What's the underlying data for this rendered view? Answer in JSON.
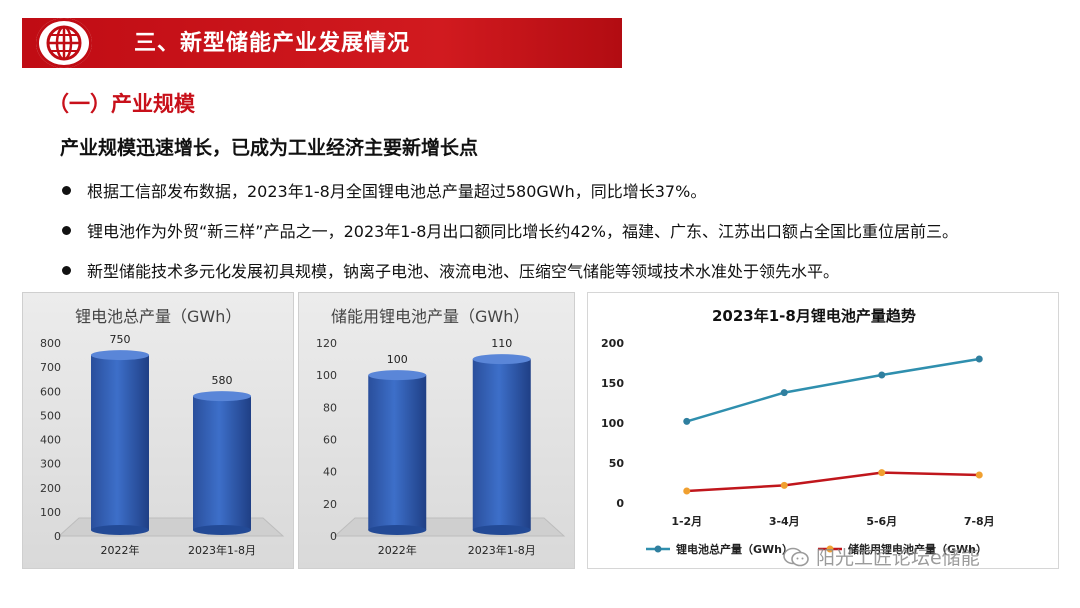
{
  "header": {
    "title": "三、新型储能产业发展情况",
    "brand_color": "#c00c14"
  },
  "section": {
    "title": "（一）产业规模"
  },
  "subtitle": "产业规模迅速增长，已成为工业经济主要新增长点",
  "bullets": [
    "根据工信部发布数据，2023年1-8月全国锂电池总产量超过580GWh，同比增长37%。",
    "锂电池作为外贸“新三样”产品之一，2023年1-8月出口额同比增长约42%，福建、广东、江苏出口额占全国比重位居前三。",
    "新型储能技术多元化发展初具规模，钠离子电池、液流电池、压缩空气储能等领域技术水准处于领先水平。"
  ],
  "watermark": "阳光工匠论坛e储能",
  "chart_data": [
    {
      "type": "bar",
      "title": "锂电池总产量（GWh）",
      "categories": [
        "2022年",
        "2023年1-8月"
      ],
      "values": [
        750,
        580
      ],
      "data_labels": [
        "750",
        "580"
      ],
      "ylim": [
        0,
        800
      ],
      "yticks": [
        "0",
        "100",
        "200",
        "300",
        "400",
        "500",
        "600",
        "700",
        "800"
      ],
      "bar_color": "#3d6fc9",
      "grid": false
    },
    {
      "type": "bar",
      "title": "储能用锂电池产量（GWh）",
      "categories": [
        "2022年",
        "2023年1-8月"
      ],
      "values": [
        100,
        110
      ],
      "data_labels": [
        "100",
        "110"
      ],
      "ylim": [
        0,
        120
      ],
      "yticks": [
        "0",
        "20",
        "40",
        "60",
        "80",
        "100",
        "120"
      ],
      "bar_color": "#3d6fc9",
      "grid": false
    },
    {
      "type": "line",
      "title": "2023年1-8月锂电池产量趋势",
      "categories": [
        "1-2月",
        "3-4月",
        "5-6月",
        "7-8月"
      ],
      "ylim": [
        0,
        200
      ],
      "yticks": [
        "0",
        "50",
        "100",
        "150",
        "200"
      ],
      "grid": false,
      "legend_position": "bottom",
      "series": [
        {
          "name": "锂电池总产量（GWh）",
          "values": [
            102,
            138,
            160,
            180
          ],
          "line_color": "#2f8fae",
          "marker_color": "#2f7f9f"
        },
        {
          "name": "储能用锂电池产量（GWh）",
          "values": [
            15,
            22,
            38,
            35
          ],
          "line_color": "#c0161c",
          "marker_color": "#f0a030"
        }
      ]
    }
  ]
}
